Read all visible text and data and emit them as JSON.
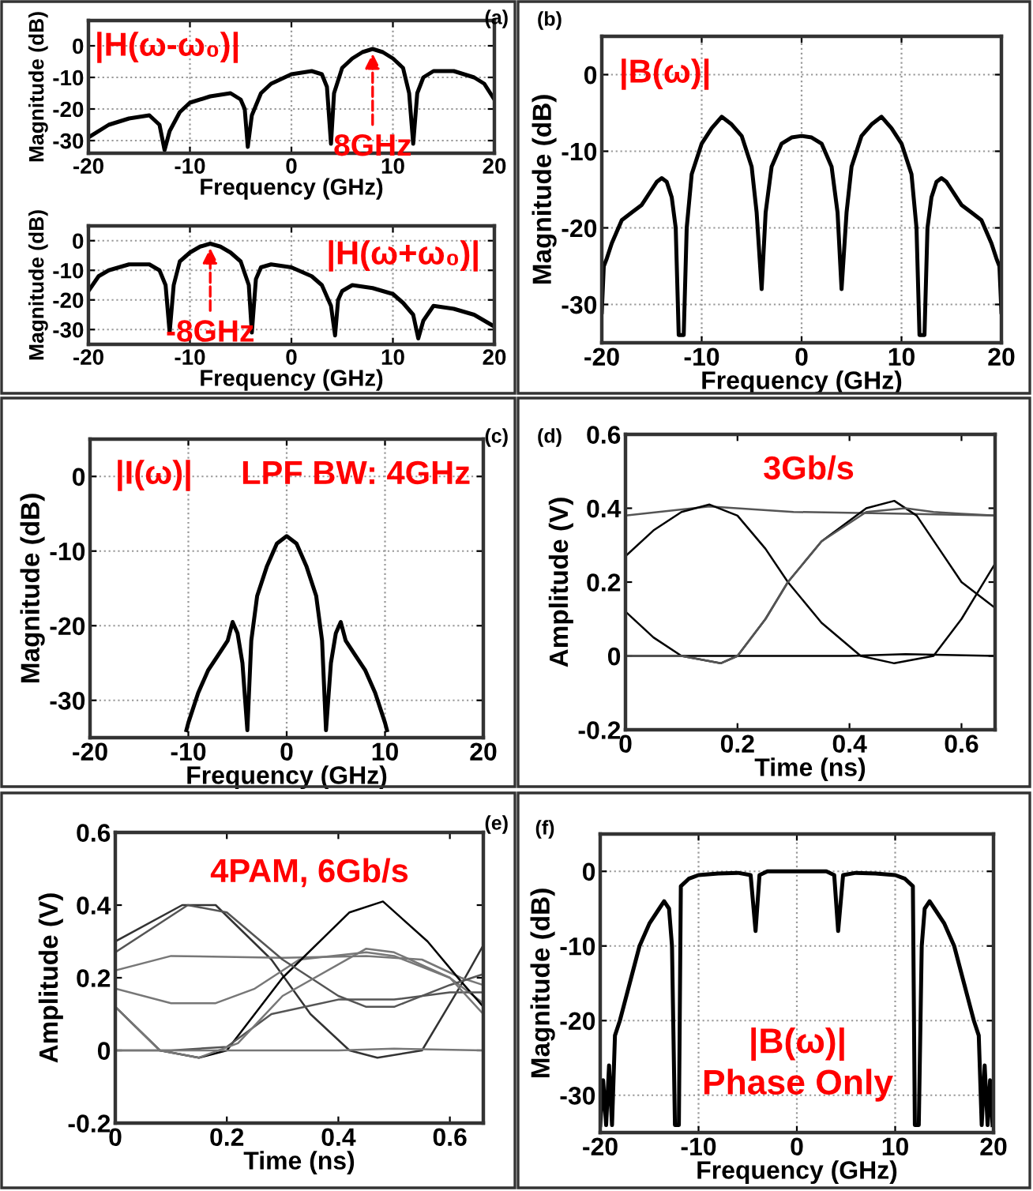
{
  "chart_data": [
    {
      "type": "line",
      "xlabel": "Frequency (GHz)",
      "ylabel": "Magnitude (dB)",
      "xlim": [
        -20,
        20
      ],
      "ylim": [
        -34,
        8
      ],
      "xticks": [
        -20,
        -10,
        0,
        10,
        20
      ],
      "yticks": [
        -30,
        -20,
        -10,
        0
      ],
      "grid": true,
      "annotations": [
        "(a)",
        "|H(ω-ω₀)|",
        {
          "text": "8GHz",
          "x": 8,
          "y": -1
        }
      ],
      "series": [
        {
          "color": "#000000",
          "x": [
            -20,
            -18,
            -16,
            -14,
            -13,
            -12.5,
            -12,
            -11,
            -10,
            -8,
            -6,
            -5,
            -4.6,
            -4.3,
            -3.9,
            -3,
            -2,
            0,
            2,
            3,
            3.5,
            3.9,
            4.2,
            5,
            6,
            7,
            8,
            9,
            10,
            11,
            11.6,
            12,
            12.4,
            13,
            14,
            16,
            18,
            19,
            20
          ],
          "values": [
            -29,
            -25,
            -23,
            -22,
            -25,
            -33,
            -27,
            -21,
            -18,
            -16,
            -15,
            -17,
            -20,
            -32,
            -22,
            -15,
            -12,
            -9,
            -8,
            -9,
            -13,
            -31,
            -15,
            -7,
            -4,
            -2,
            -1,
            -2,
            -4,
            -7,
            -15,
            -31,
            -15,
            -10,
            -8,
            -8,
            -10,
            -12,
            -17
          ]
        }
      ]
    },
    {
      "type": "line",
      "xlabel": "Frequency (GHz)",
      "ylabel": "Magnitude (dB)",
      "xlim": [
        -20,
        20
      ],
      "ylim": [
        -35,
        5
      ],
      "xticks": [
        -20,
        -10,
        0,
        10,
        20
      ],
      "yticks": [
        -30,
        -20,
        -10,
        0
      ],
      "grid": true,
      "annotations": [
        "|H(ω+ω₀)|",
        {
          "text": "-8GHz",
          "x": -8,
          "y": -1
        }
      ],
      "series": [
        {
          "color": "#000000",
          "x": [
            -20,
            -19,
            -18,
            -16,
            -14,
            -13,
            -12.4,
            -12,
            -11.6,
            -11,
            -10,
            -9,
            -8,
            -7,
            -6,
            -5,
            -4.2,
            -3.9,
            -3.5,
            -3,
            -2,
            0,
            2,
            3,
            3.9,
            4.3,
            4.6,
            5,
            6,
            8,
            10,
            11,
            12,
            12.5,
            13,
            14,
            16,
            18,
            20
          ],
          "values": [
            -17,
            -12,
            -10,
            -8,
            -8,
            -10,
            -15,
            -31,
            -15,
            -7,
            -4,
            -2,
            -1,
            -2,
            -4,
            -7,
            -15,
            -31,
            -13,
            -9,
            -8,
            -9,
            -12,
            -15,
            -22,
            -32,
            -20,
            -17,
            -15,
            -16,
            -18,
            -21,
            -25,
            -33,
            -27,
            -22,
            -23,
            -25,
            -29
          ]
        }
      ]
    },
    {
      "type": "line",
      "xlabel": "Frequency (GHz)",
      "ylabel": "Magnitude (dB)",
      "xlim": [
        -20,
        20
      ],
      "ylim": [
        -35,
        5
      ],
      "xticks": [
        -20,
        -10,
        0,
        10,
        20
      ],
      "yticks": [
        -30,
        -20,
        -10,
        0
      ],
      "grid": true,
      "annotations": [
        "(b)",
        "|B(ω)|"
      ],
      "series": [
        {
          "color": "#000000",
          "x": [
            -20,
            -19.8,
            -19.5,
            -19,
            -18,
            -17,
            -16,
            -15,
            -14.5,
            -14,
            -13.5,
            -13,
            -12.6,
            -12.3,
            -11.8,
            -11.5,
            -11,
            -10,
            -9,
            -8,
            -7,
            -6,
            -5,
            -4.5,
            -4,
            -3.6,
            -3,
            -2,
            -1,
            0,
            1,
            2,
            3,
            3.6,
            4,
            4.5,
            5,
            6,
            7,
            8,
            9,
            10,
            11,
            11.5,
            11.8,
            12.3,
            12.6,
            13,
            13.5,
            14,
            14.5,
            15,
            16,
            17,
            18,
            19,
            19.5,
            19.8,
            20
          ],
          "values": [
            -31,
            -25,
            -24,
            -22,
            -19,
            -18,
            -17,
            -15,
            -14,
            -13.5,
            -14,
            -16,
            -20,
            -34,
            -34,
            -20,
            -13,
            -9,
            -7,
            -5.5,
            -6.5,
            -8,
            -12,
            -18,
            -28,
            -18,
            -12,
            -9,
            -8.2,
            -8,
            -8.2,
            -9,
            -12,
            -18,
            -28,
            -18,
            -12,
            -8,
            -6.5,
            -5.5,
            -7,
            -9,
            -13,
            -20,
            -34,
            -34,
            -20,
            -16,
            -14,
            -13.5,
            -14,
            -15,
            -17,
            -18,
            -19,
            -22,
            -24,
            -25,
            -31
          ]
        }
      ]
    },
    {
      "type": "line",
      "xlabel": "Frequency (GHz)",
      "ylabel": "Magnitude (dB)",
      "xlim": [
        -20,
        20
      ],
      "ylim": [
        -35,
        5
      ],
      "xticks": [
        -20,
        -10,
        0,
        10,
        20
      ],
      "yticks": [
        -30,
        -20,
        -10,
        0
      ],
      "grid": true,
      "annotations": [
        "(c)",
        "|I(ω)|",
        "LPF BW: 4GHz"
      ],
      "series": [
        {
          "color": "#000000",
          "x": [
            -10.2,
            -10,
            -9,
            -8,
            -7,
            -6,
            -5.5,
            -5,
            -4.5,
            -4,
            -3.6,
            -3,
            -2,
            -1,
            0,
            1,
            2,
            3,
            3.6,
            4,
            4.5,
            5,
            5.5,
            6,
            7,
            8,
            9,
            10,
            10.2
          ],
          "values": [
            -34,
            -33,
            -29,
            -26,
            -24,
            -22,
            -19.5,
            -21,
            -25,
            -34,
            -22,
            -16,
            -12,
            -9,
            -8,
            -9,
            -12,
            -16,
            -22,
            -34,
            -25,
            -21,
            -19.5,
            -22,
            -24,
            -26,
            -29,
            -33,
            -34
          ]
        }
      ]
    },
    {
      "type": "line",
      "xlabel": "Time (ns)",
      "ylabel": "Amplitude (V)",
      "xlim": [
        0,
        0.66
      ],
      "ylim": [
        -0.2,
        0.6
      ],
      "xticks": [
        0,
        0.2,
        0.4,
        0.6
      ],
      "yticks": [
        -0.2,
        0,
        0.2,
        0.4,
        0.6
      ],
      "annotations": [
        "(d)",
        "3Gb/s"
      ],
      "series": [
        {
          "color": "#555555",
          "x": [
            0,
            0.15,
            0.3,
            0.5,
            0.66
          ],
          "values": [
            0.38,
            0.405,
            0.39,
            0.385,
            0.38
          ]
        },
        {
          "color": "#000000",
          "x": [
            0,
            0.2,
            0.4,
            0.5,
            0.66
          ],
          "values": [
            0,
            0,
            0,
            0.005,
            0
          ]
        },
        {
          "color": "#000000",
          "x": [
            0,
            0.05,
            0.1,
            0.15,
            0.2,
            0.25,
            0.29,
            0.35,
            0.42,
            0.48,
            0.55,
            0.6,
            0.66
          ],
          "values": [
            0.27,
            0.34,
            0.39,
            0.41,
            0.38,
            0.29,
            0.2,
            0.09,
            0,
            -0.02,
            0,
            0.1,
            0.25
          ]
        },
        {
          "color": "#000000",
          "x": [
            0,
            0.05,
            0.1,
            0.17,
            0.2,
            0.25,
            0.29,
            0.35,
            0.43,
            0.48,
            0.52,
            0.56,
            0.6,
            0.66
          ],
          "values": [
            0.12,
            0.05,
            0,
            -0.02,
            0,
            0.1,
            0.2,
            0.31,
            0.4,
            0.42,
            0.38,
            0.29,
            0.2,
            0.13
          ]
        },
        {
          "color": "#555555",
          "x": [
            0,
            0.1,
            0.17,
            0.2,
            0.25,
            0.29,
            0.35,
            0.43,
            0.5,
            0.55,
            0.6,
            0.66
          ],
          "values": [
            0,
            0,
            -0.02,
            0,
            0.1,
            0.2,
            0.31,
            0.39,
            0.4,
            0.39,
            0.385,
            0.38
          ]
        }
      ]
    },
    {
      "type": "line",
      "xlabel": "Time (ns)",
      "ylabel": "Amplitude (V)",
      "xlim": [
        0,
        0.66
      ],
      "ylim": [
        -0.2,
        0.6
      ],
      "xticks": [
        0,
        0.2,
        0.4,
        0.6
      ],
      "yticks": [
        -0.2,
        0,
        0.2,
        0.4,
        0.6
      ],
      "annotations": [
        "(e)",
        "4PAM, 6Gb/s"
      ],
      "series": [
        {
          "color": "#333333",
          "x": [
            0,
            0.12,
            0.18,
            0.28,
            0.35,
            0.42,
            0.47,
            0.55,
            0.62,
            0.66
          ],
          "values": [
            0.3,
            0.4,
            0.4,
            0.25,
            0.1,
            0,
            -0.02,
            0,
            0.18,
            0.29
          ]
        },
        {
          "color": "#777777",
          "x": [
            0,
            0.1,
            0.3,
            0.45,
            0.55,
            0.62,
            0.66
          ],
          "values": [
            0.22,
            0.26,
            0.255,
            0.26,
            0.25,
            0.2,
            0.18
          ]
        },
        {
          "color": "#777777",
          "x": [
            0,
            0.1,
            0.18,
            0.25,
            0.33,
            0.45,
            0.5,
            0.6,
            0.66
          ],
          "values": [
            0.17,
            0.13,
            0.13,
            0.17,
            0.25,
            0.27,
            0.26,
            0.2,
            0.13
          ]
        },
        {
          "color": "#000000",
          "x": [
            0,
            0.08,
            0.15,
            0.2,
            0.3,
            0.42,
            0.48,
            0.56,
            0.62,
            0.66
          ],
          "values": [
            0.12,
            0,
            -0.02,
            0,
            0.2,
            0.38,
            0.41,
            0.3,
            0.19,
            0.12
          ]
        },
        {
          "color": "#555555",
          "x": [
            0,
            0.1,
            0.2,
            0.28,
            0.4,
            0.5,
            0.6,
            0.66
          ],
          "values": [
            0,
            0,
            0.01,
            0.1,
            0.14,
            0.14,
            0.16,
            0.16
          ]
        },
        {
          "color": "#777777",
          "x": [
            0,
            0.2,
            0.4,
            0.5,
            0.66
          ],
          "values": [
            0,
            0,
            0,
            0.005,
            0
          ]
        },
        {
          "color": "#555555",
          "x": [
            0,
            0.13,
            0.2,
            0.3,
            0.4,
            0.45,
            0.5,
            0.6,
            0.66
          ],
          "values": [
            0.27,
            0.4,
            0.38,
            0.25,
            0.15,
            0.12,
            0.12,
            0.18,
            0.21
          ]
        },
        {
          "color": "#777777",
          "x": [
            0,
            0.08,
            0.15,
            0.22,
            0.3,
            0.45,
            0.5,
            0.6,
            0.66
          ],
          "values": [
            0.12,
            0,
            -0.02,
            0.02,
            0.15,
            0.28,
            0.27,
            0.2,
            0.1
          ]
        }
      ]
    },
    {
      "type": "line",
      "xlabel": "Frequency (GHz)",
      "ylabel": "Magnitude (dB)",
      "xlim": [
        -20,
        20
      ],
      "ylim": [
        -35,
        5
      ],
      "xticks": [
        -20,
        -10,
        0,
        10,
        20
      ],
      "yticks": [
        -30,
        -20,
        -10,
        0
      ],
      "grid": true,
      "annotations": [
        "(f)",
        "|B(ω)|",
        "Phase Only"
      ],
      "series": [
        {
          "color": "#000000",
          "x": [
            -20,
            -19.7,
            -19.4,
            -19.1,
            -18.8,
            -18.5,
            -18,
            -17,
            -16,
            -15,
            -14,
            -13.5,
            -13,
            -12.7,
            -12.4,
            -12,
            -11.8,
            -11,
            -10,
            -8,
            -6,
            -4.7,
            -4.2,
            -3.8,
            -3,
            0,
            3,
            3.8,
            4.2,
            4.7,
            6,
            8,
            10,
            11,
            11.8,
            12,
            12.4,
            12.7,
            13,
            13.5,
            14,
            15,
            16,
            17,
            18,
            18.5,
            18.8,
            19.1,
            19.4,
            19.65,
            19.9
          ],
          "values": [
            -34,
            -28,
            -34,
            -26,
            -34,
            -22,
            -20,
            -15,
            -10,
            -7,
            -5,
            -4,
            -5,
            -10,
            -34,
            -34,
            -2,
            -1,
            -0.5,
            -0.3,
            -0.2,
            -0.5,
            -8,
            -0.5,
            0,
            0,
            0,
            -0.5,
            -8,
            -0.5,
            -0.2,
            -0.3,
            -0.5,
            -1,
            -2,
            -34,
            -34,
            -10,
            -5,
            -4,
            -5,
            -7,
            -10,
            -15,
            -20,
            -22,
            -34,
            -26,
            -34,
            -28,
            -34
          ]
        }
      ]
    }
  ]
}
